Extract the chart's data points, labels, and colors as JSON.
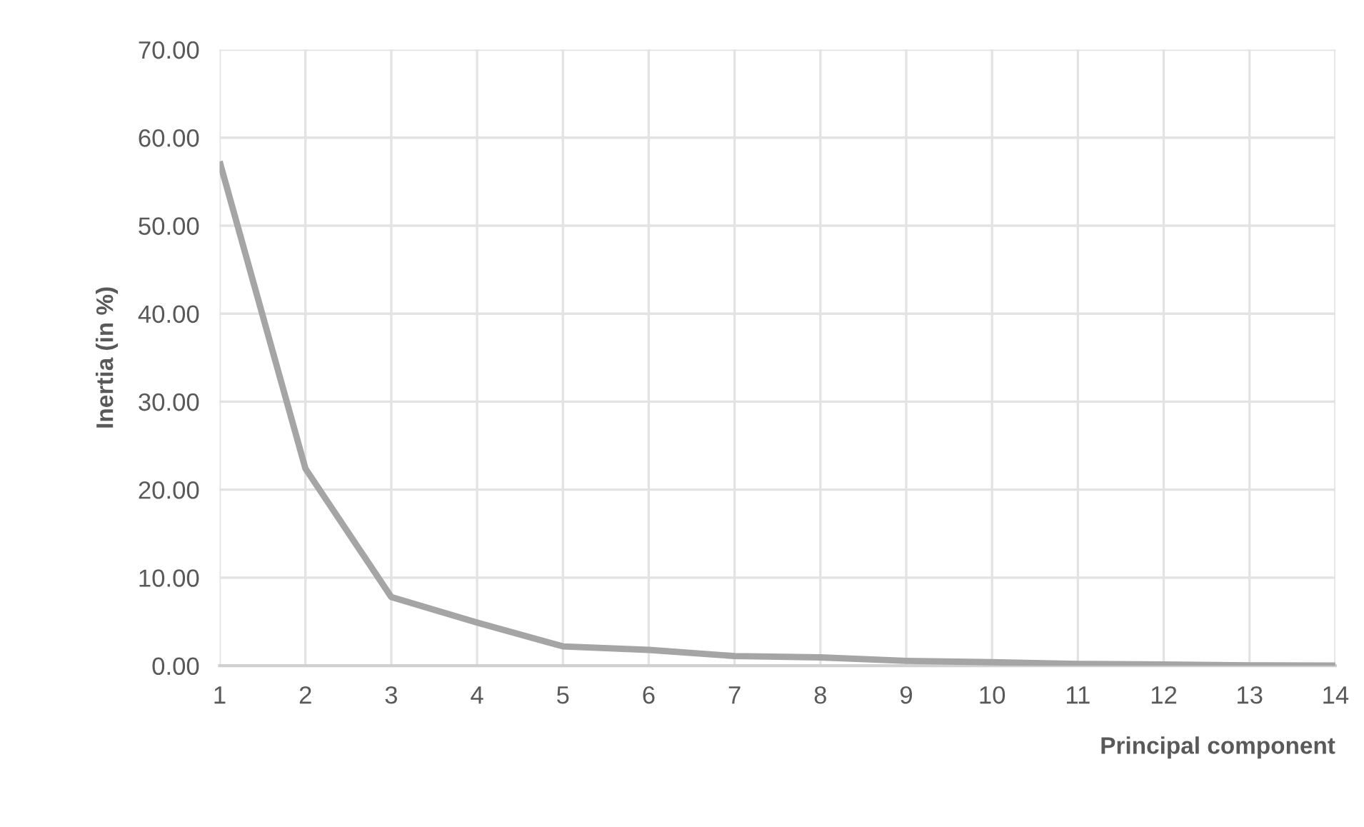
{
  "chart_data": {
    "type": "line",
    "xlabel": "Principal component",
    "ylabel": "Inertia (in %)",
    "categories": [
      "1",
      "2",
      "3",
      "4",
      "5",
      "6",
      "7",
      "8",
      "9",
      "10",
      "11",
      "12",
      "13",
      "14"
    ],
    "series": [
      {
        "color": "#a5a5a5",
        "values": [
          57.3,
          22.4,
          7.8,
          4.9,
          2.2,
          1.8,
          1.1,
          0.95,
          0.55,
          0.4,
          0.2,
          0.15,
          0.05,
          0.03
        ]
      }
    ],
    "ylim": [
      0,
      70
    ],
    "yticks": [
      {
        "value": 0,
        "label": "0.00"
      },
      {
        "value": 10,
        "label": "10.00"
      },
      {
        "value": 20,
        "label": "20.00"
      },
      {
        "value": 30,
        "label": "30.00"
      },
      {
        "value": 40,
        "label": "40.00"
      },
      {
        "value": 50,
        "label": "50.00"
      },
      {
        "value": 60,
        "label": "60.00"
      },
      {
        "value": 70,
        "label": "70.00"
      }
    ],
    "grid": true,
    "marker": "none",
    "line_style": "solid",
    "legend": false
  }
}
